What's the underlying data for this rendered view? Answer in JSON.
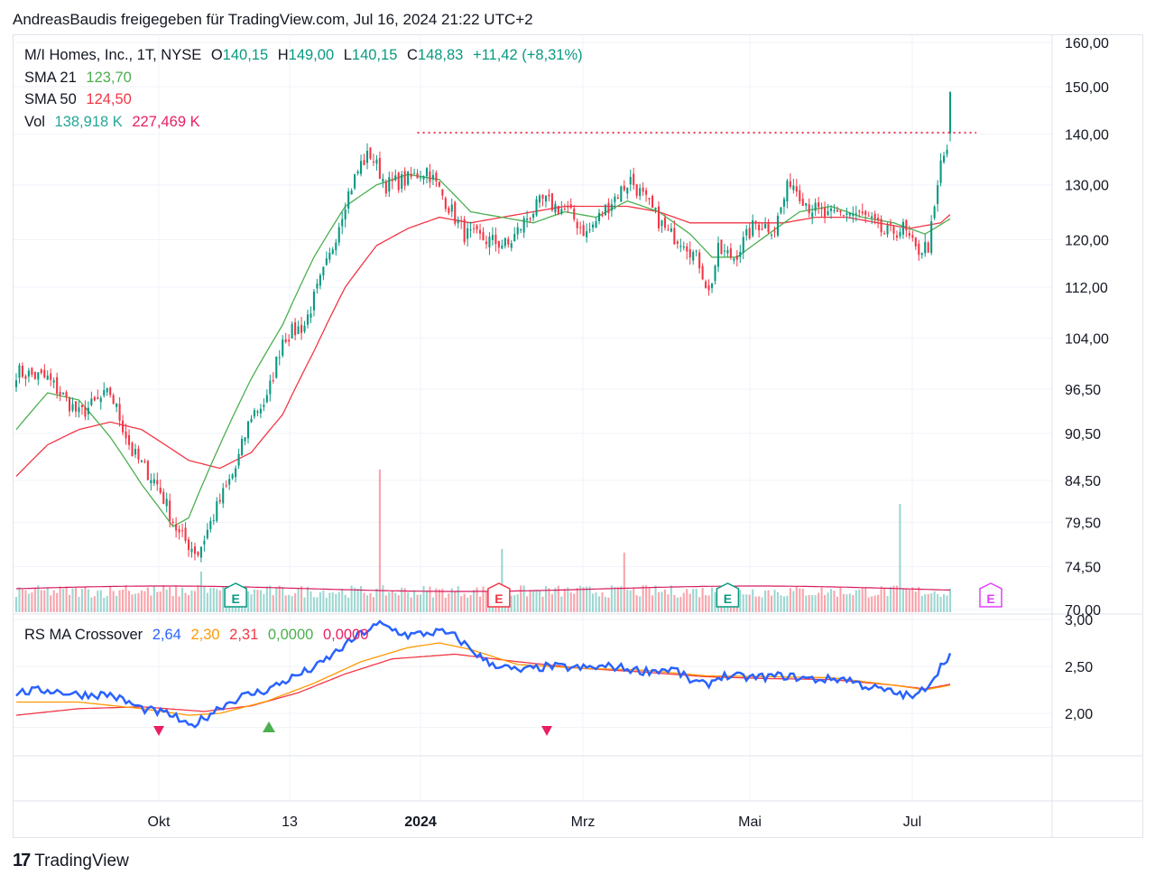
{
  "header": {
    "text": "AndreasBaudis freigegeben für TradingView.com, Jul 16, 2024 21:22 UTC+2"
  },
  "legend": {
    "symbol": "M/I Homes, Inc., 1T, NYSE",
    "o_label": "O",
    "o_value": "140,15",
    "h_label": "H",
    "h_value": "149,00",
    "l_label": "L",
    "l_value": "140,15",
    "c_label": "C",
    "c_value": "148,83",
    "change": "+11,42 (+8,31%)",
    "sma21_label": "SMA 21",
    "sma21_value": "123,70",
    "sma50_label": "SMA 50",
    "sma50_value": "124,50",
    "vol_label": "Vol",
    "vol_value1": "138,918 K",
    "vol_value2": "227,469 K",
    "rs_label": "RS MA Crossover",
    "rs_v1": "2,64",
    "rs_v2": "2,30",
    "rs_v3": "2,31",
    "rs_v4": "0,0000",
    "rs_v5": "0,0000"
  },
  "footer": {
    "logo": "17",
    "brand": "TradingView"
  },
  "colors": {
    "up": "#089981",
    "down": "#f23645",
    "sma21": "#4caf50",
    "sma50": "#f23645",
    "rs": "#2962ff",
    "rs_fast": "#ff9800",
    "rs_slow": "#f23645",
    "vol_up": "#26a69a",
    "vol_down": "#f23645",
    "resistance": "#f23645"
  },
  "chart_data": [
    {
      "type": "candlestick",
      "title": "M/I Homes, Inc., 1T, NYSE",
      "y_axis_labels": [
        "160,00",
        "150,00",
        "140,00",
        "130,00",
        "120,00",
        "112,00",
        "104,00",
        "96,50",
        "90,50",
        "84,50",
        "79,50",
        "74,50",
        "70,00"
      ],
      "x_axis_labels": [
        "Okt",
        "13",
        "2024",
        "Mrz",
        "Mai",
        "Jul"
      ],
      "y_scale": "log",
      "ylim": [
        70,
        161
      ],
      "resistance_level": 140.3,
      "earnings_markers": [
        "E",
        "E",
        "E",
        "E"
      ],
      "anchors_price": [
        [
          0,
          99
        ],
        [
          10,
          98
        ],
        [
          20,
          93
        ],
        [
          30,
          96
        ],
        [
          37,
          88
        ],
        [
          45,
          84
        ],
        [
          52,
          78
        ],
        [
          58,
          76
        ],
        [
          65,
          82
        ],
        [
          70,
          86
        ],
        [
          75,
          93
        ],
        [
          80,
          95
        ],
        [
          85,
          104
        ],
        [
          92,
          106
        ],
        [
          100,
          117
        ],
        [
          105,
          127
        ],
        [
          110,
          134
        ],
        [
          113,
          136
        ],
        [
          118,
          130
        ],
        [
          125,
          131
        ],
        [
          131,
          133
        ],
        [
          137,
          127
        ],
        [
          143,
          121
        ],
        [
          150,
          120
        ],
        [
          157,
          119
        ],
        [
          163,
          124
        ],
        [
          168,
          127
        ],
        [
          176,
          125
        ],
        [
          182,
          121
        ],
        [
          190,
          127
        ],
        [
          196,
          131
        ],
        [
          202,
          126
        ],
        [
          208,
          121
        ],
        [
          213,
          120
        ],
        [
          218,
          116
        ],
        [
          221,
          111
        ],
        [
          224,
          118
        ],
        [
          229,
          117
        ],
        [
          236,
          123
        ],
        [
          242,
          122
        ],
        [
          247,
          131
        ],
        [
          253,
          126
        ],
        [
          259,
          124
        ],
        [
          265,
          125
        ],
        [
          271,
          124
        ],
        [
          277,
          121
        ],
        [
          283,
          122
        ],
        [
          287,
          118
        ],
        [
          291,
          119
        ],
        [
          293,
          125
        ],
        [
          295,
          134
        ],
        [
          297,
          137
        ],
        [
          298,
          148.8
        ]
      ],
      "anchors_sma21": [
        [
          0,
          91
        ],
        [
          10,
          96
        ],
        [
          20,
          95
        ],
        [
          30,
          90
        ],
        [
          40,
          84
        ],
        [
          50,
          79
        ],
        [
          55,
          80
        ],
        [
          65,
          89
        ],
        [
          75,
          98
        ],
        [
          85,
          106
        ],
        [
          95,
          117
        ],
        [
          105,
          126
        ],
        [
          115,
          130
        ],
        [
          125,
          132
        ],
        [
          135,
          131
        ],
        [
          145,
          125
        ],
        [
          155,
          124
        ],
        [
          165,
          123
        ],
        [
          175,
          125
        ],
        [
          185,
          124
        ],
        [
          195,
          127
        ],
        [
          205,
          125
        ],
        [
          215,
          121
        ],
        [
          222,
          117
        ],
        [
          230,
          117
        ],
        [
          240,
          121
        ],
        [
          250,
          125
        ],
        [
          260,
          126
        ],
        [
          270,
          124
        ],
        [
          280,
          123
        ],
        [
          290,
          121
        ],
        [
          298,
          123.7
        ]
      ],
      "anchors_sma50": [
        [
          0,
          85
        ],
        [
          10,
          89
        ],
        [
          20,
          91
        ],
        [
          30,
          92
        ],
        [
          40,
          91
        ],
        [
          55,
          87
        ],
        [
          65,
          86
        ],
        [
          75,
          88
        ],
        [
          85,
          93
        ],
        [
          95,
          102
        ],
        [
          105,
          112
        ],
        [
          115,
          119
        ],
        [
          125,
          122
        ],
        [
          135,
          124
        ],
        [
          145,
          123
        ],
        [
          155,
          124
        ],
        [
          165,
          125
        ],
        [
          175,
          126
        ],
        [
          185,
          126
        ],
        [
          195,
          126
        ],
        [
          205,
          125
        ],
        [
          215,
          123
        ],
        [
          225,
          123
        ],
        [
          235,
          123
        ],
        [
          245,
          123
        ],
        [
          255,
          124
        ],
        [
          265,
          124
        ],
        [
          275,
          123
        ],
        [
          285,
          122
        ],
        [
          295,
          123
        ],
        [
          298,
          124.5
        ]
      ],
      "volume_series": "two overlapping bar series: up-day and down-day shares; labels 138,918 K and 227,469 K"
    },
    {
      "type": "line",
      "title": "RS MA Crossover",
      "series": [
        {
          "name": "2,64",
          "color": "#2962ff"
        },
        {
          "name": "2,30",
          "color": "#ff9800"
        },
        {
          "name": "2,31",
          "color": "#f23645"
        }
      ],
      "y_axis_labels": [
        "3,00",
        "2,50",
        "2,00"
      ],
      "ylim": [
        1.5,
        3.0
      ],
      "anchors_rs": [
        [
          0,
          2.22
        ],
        [
          10,
          2.25
        ],
        [
          20,
          2.2
        ],
        [
          30,
          2.2
        ],
        [
          40,
          2.05
        ],
        [
          50,
          1.98
        ],
        [
          55,
          1.85
        ],
        [
          60,
          1.95
        ],
        [
          65,
          2.07
        ],
        [
          72,
          2.18
        ],
        [
          80,
          2.25
        ],
        [
          88,
          2.38
        ],
        [
          96,
          2.5
        ],
        [
          104,
          2.7
        ],
        [
          110,
          2.85
        ],
        [
          116,
          2.95
        ],
        [
          125,
          2.83
        ],
        [
          135,
          2.87
        ],
        [
          140,
          2.82
        ],
        [
          150,
          2.55
        ],
        [
          160,
          2.45
        ],
        [
          170,
          2.5
        ],
        [
          180,
          2.48
        ],
        [
          190,
          2.5
        ],
        [
          200,
          2.45
        ],
        [
          210,
          2.47
        ],
        [
          215,
          2.35
        ],
        [
          220,
          2.3
        ],
        [
          225,
          2.4
        ],
        [
          235,
          2.38
        ],
        [
          245,
          2.4
        ],
        [
          255,
          2.36
        ],
        [
          265,
          2.37
        ],
        [
          270,
          2.3
        ],
        [
          280,
          2.22
        ],
        [
          287,
          2.17
        ],
        [
          292,
          2.35
        ],
        [
          295,
          2.5
        ],
        [
          298,
          2.64
        ]
      ],
      "anchors_fast": [
        [
          0,
          2.12
        ],
        [
          20,
          2.12
        ],
        [
          40,
          2.05
        ],
        [
          55,
          1.98
        ],
        [
          65,
          2.0
        ],
        [
          80,
          2.13
        ],
        [
          95,
          2.32
        ],
        [
          110,
          2.55
        ],
        [
          125,
          2.7
        ],
        [
          135,
          2.75
        ],
        [
          145,
          2.68
        ],
        [
          160,
          2.52
        ],
        [
          180,
          2.48
        ],
        [
          200,
          2.46
        ],
        [
          220,
          2.4
        ],
        [
          240,
          2.39
        ],
        [
          260,
          2.38
        ],
        [
          280,
          2.3
        ],
        [
          290,
          2.25
        ],
        [
          298,
          2.3
        ]
      ],
      "anchors_slow": [
        [
          0,
          1.98
        ],
        [
          20,
          2.05
        ],
        [
          40,
          2.07
        ],
        [
          60,
          2.02
        ],
        [
          75,
          2.08
        ],
        [
          90,
          2.22
        ],
        [
          105,
          2.42
        ],
        [
          120,
          2.58
        ],
        [
          140,
          2.63
        ],
        [
          160,
          2.55
        ],
        [
          180,
          2.48
        ],
        [
          200,
          2.44
        ],
        [
          220,
          2.39
        ],
        [
          240,
          2.37
        ],
        [
          260,
          2.36
        ],
        [
          280,
          2.3
        ],
        [
          290,
          2.26
        ],
        [
          298,
          2.31
        ]
      ],
      "signal_markers": [
        "sell",
        "buy",
        "sell"
      ]
    }
  ]
}
